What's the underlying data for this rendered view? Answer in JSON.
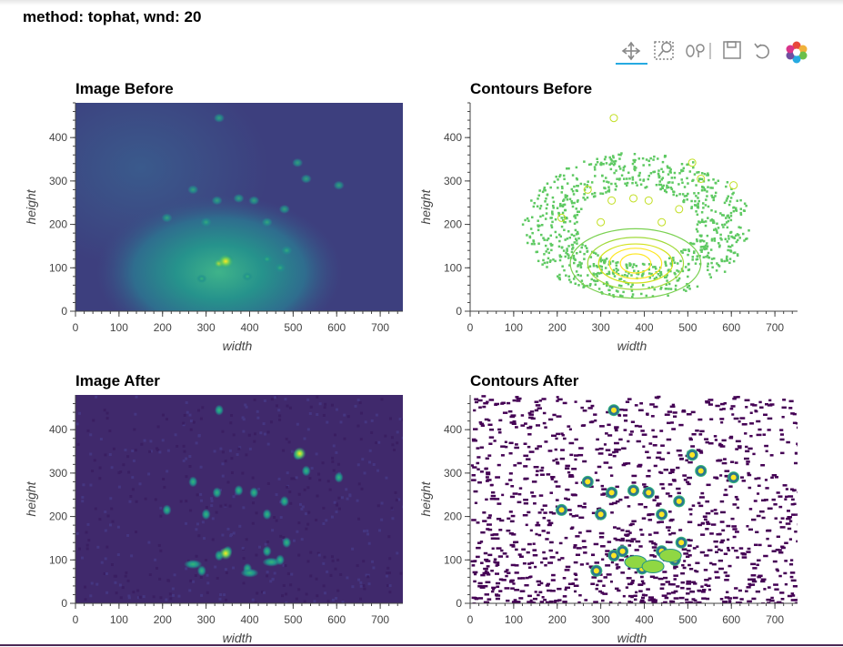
{
  "header": {
    "title": "method: tophat, wnd: 20"
  },
  "panels": [
    {
      "title": "Image Before",
      "x_label": "width",
      "y_label": "height",
      "xlim": [
        0,
        752
      ],
      "ylim": [
        0,
        480
      ],
      "xticks": [
        0,
        100,
        200,
        300,
        400,
        500,
        600,
        700
      ],
      "yticks": [
        0,
        100,
        200,
        300,
        400
      ]
    },
    {
      "title": "Contours Before",
      "x_label": "width",
      "y_label": "height",
      "xlim": [
        0,
        752
      ],
      "ylim": [
        0,
        480
      ],
      "xticks": [
        0,
        100,
        200,
        300,
        400,
        500,
        600,
        700
      ],
      "yticks": [
        0,
        100,
        200,
        300,
        400
      ]
    },
    {
      "title": "Image After",
      "x_label": "width",
      "y_label": "height",
      "xlim": [
        0,
        752
      ],
      "ylim": [
        0,
        480
      ],
      "xticks": [
        0,
        100,
        200,
        300,
        400,
        500,
        600,
        700
      ],
      "yticks": [
        0,
        100,
        200,
        300,
        400
      ]
    },
    {
      "title": "Contours After",
      "x_label": "width",
      "y_label": "height",
      "xlim": [
        0,
        752
      ],
      "ylim": [
        0,
        480
      ],
      "xticks": [
        0,
        100,
        200,
        300,
        400,
        500,
        600,
        700
      ],
      "yticks": [
        0,
        100,
        200,
        300,
        400
      ]
    }
  ]
}
